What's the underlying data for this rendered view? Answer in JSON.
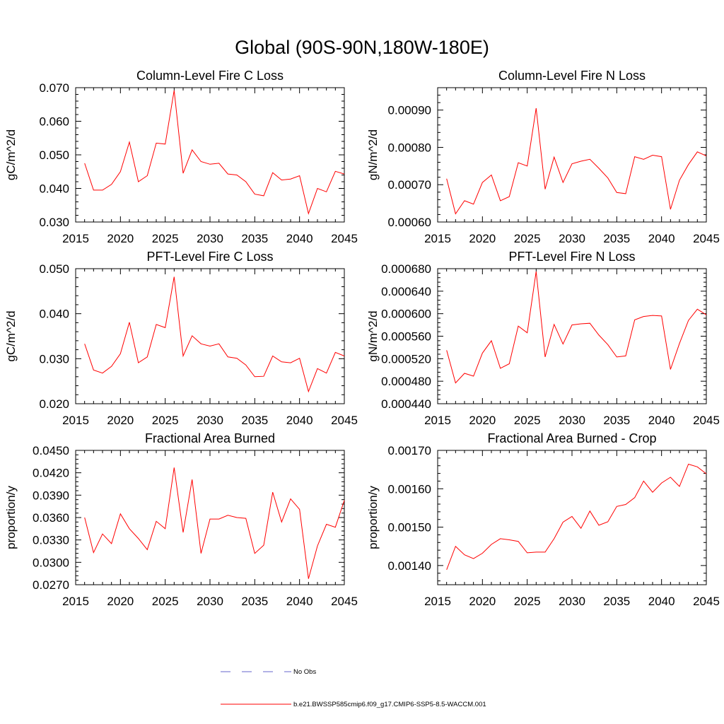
{
  "figure_title": "Global (90S-90N,180W-180E)",
  "colors": {
    "obs": "#6666cc",
    "model": "#ff0000",
    "axis": "#000000",
    "background": "#ffffff"
  },
  "legend": {
    "obs_label": "No Obs",
    "model_label": "b.e21.BWSSP585cmip6.f09_g17.CMIP6-SSP5-8.5-WACCM.001"
  },
  "chart_data": [
    {
      "type": "line",
      "title": "Column-Level Fire C Loss",
      "ylabel": "gC/m^2/d",
      "xlim": [
        2015,
        2045
      ],
      "ylim": [
        0.03,
        0.07
      ],
      "xticks": [
        "2015",
        "2020",
        "2025",
        "2030",
        "2035",
        "2040",
        "2045"
      ],
      "yticks": [
        "0.030",
        "0.040",
        "0.050",
        "0.060",
        "0.070"
      ],
      "x": [
        2016,
        2017,
        2018,
        2019,
        2020,
        2021,
        2022,
        2023,
        2024,
        2025,
        2026,
        2027,
        2028,
        2029,
        2030,
        2031,
        2032,
        2033,
        2034,
        2035,
        2036,
        2037,
        2038,
        2039,
        2040,
        2041,
        2042,
        2043,
        2044,
        2045
      ],
      "series": [
        {
          "name": "b.e21.BWSSP585cmip6.f09_g17.CMIP6-SSP5-8.5-WACCM.001",
          "values": [
            0.0475,
            0.0395,
            0.0395,
            0.0412,
            0.045,
            0.0538,
            0.042,
            0.0438,
            0.0535,
            0.0532,
            0.0692,
            0.0445,
            0.0515,
            0.048,
            0.0472,
            0.0475,
            0.0443,
            0.044,
            0.042,
            0.0383,
            0.0378,
            0.0447,
            0.0425,
            0.0428,
            0.0438,
            0.0325,
            0.04,
            0.039,
            0.0451,
            0.0443
          ]
        }
      ]
    },
    {
      "type": "line",
      "title": "Column-Level Fire N Loss",
      "ylabel": "gN/m^2/d",
      "xlim": [
        2015,
        2045
      ],
      "ylim": [
        0.0006,
        0.00096
      ],
      "xticks": [
        "2015",
        "2020",
        "2025",
        "2030",
        "2035",
        "2040",
        "2045"
      ],
      "yticks": [
        "0.00060",
        "0.00070",
        "0.00080",
        "0.00090"
      ],
      "x": [
        2016,
        2017,
        2018,
        2019,
        2020,
        2021,
        2022,
        2023,
        2024,
        2025,
        2026,
        2027,
        2028,
        2029,
        2030,
        2031,
        2032,
        2033,
        2034,
        2035,
        2036,
        2037,
        2038,
        2039,
        2040,
        2041,
        2042,
        2043,
        2044,
        2045
      ],
      "series": [
        {
          "name": "b.e21.BWSSP585cmip6.f09_g17.CMIP6-SSP5-8.5-WACCM.001",
          "values": [
            0.000716,
            0.000622,
            0.000657,
            0.000648,
            0.000706,
            0.000726,
            0.000657,
            0.000668,
            0.000759,
            0.00075,
            0.000905,
            0.000688,
            0.000774,
            0.000706,
            0.000756,
            0.000763,
            0.000768,
            0.000744,
            0.000718,
            0.000679,
            0.000676,
            0.000775,
            0.000768,
            0.000779,
            0.000775,
            0.000634,
            0.000712,
            0.000754,
            0.000788,
            0.000777
          ]
        }
      ]
    },
    {
      "type": "line",
      "title": "PFT-Level Fire C Loss",
      "ylabel": "gC/m^2/d",
      "xlim": [
        2015,
        2045
      ],
      "ylim": [
        0.02,
        0.05
      ],
      "xticks": [
        "2015",
        "2020",
        "2025",
        "2030",
        "2035",
        "2040",
        "2045"
      ],
      "yticks": [
        "0.020",
        "0.030",
        "0.040",
        "0.050"
      ],
      "x": [
        2016,
        2017,
        2018,
        2019,
        2020,
        2021,
        2022,
        2023,
        2024,
        2025,
        2026,
        2027,
        2028,
        2029,
        2030,
        2031,
        2032,
        2033,
        2034,
        2035,
        2036,
        2037,
        2038,
        2039,
        2040,
        2041,
        2042,
        2043,
        2044,
        2045
      ],
      "series": [
        {
          "name": "b.e21.BWSSP585cmip6.f09_g17.CMIP6-SSP5-8.5-WACCM.001",
          "values": [
            0.0333,
            0.0275,
            0.0268,
            0.0283,
            0.0311,
            0.0381,
            0.0291,
            0.0304,
            0.0376,
            0.0369,
            0.0482,
            0.0306,
            0.0351,
            0.0333,
            0.0328,
            0.0333,
            0.0304,
            0.0301,
            0.0286,
            0.026,
            0.0261,
            0.0306,
            0.0293,
            0.0291,
            0.0301,
            0.0227,
            0.0278,
            0.0268,
            0.0314,
            0.0306
          ]
        }
      ]
    },
    {
      "type": "line",
      "title": "PFT-Level Fire N Loss",
      "ylabel": "gN/m^2/d",
      "xlim": [
        2015,
        2045
      ],
      "ylim": [
        0.00044,
        0.00068
      ],
      "xticks": [
        "2015",
        "2020",
        "2025",
        "2030",
        "2035",
        "2040",
        "2045"
      ],
      "yticks": [
        "0.000440",
        "0.000480",
        "0.000520",
        "0.000560",
        "0.000600",
        "0.000640",
        "0.000680"
      ],
      "x": [
        2016,
        2017,
        2018,
        2019,
        2020,
        2021,
        2022,
        2023,
        2024,
        2025,
        2026,
        2027,
        2028,
        2029,
        2030,
        2031,
        2032,
        2033,
        2034,
        2035,
        2036,
        2037,
        2038,
        2039,
        2040,
        2041,
        2042,
        2043,
        2044,
        2045
      ],
      "series": [
        {
          "name": "b.e21.BWSSP585cmip6.f09_g17.CMIP6-SSP5-8.5-WACCM.001",
          "values": [
            0.000535,
            0.000477,
            0.000494,
            0.000489,
            0.00053,
            0.000552,
            0.000503,
            0.000511,
            0.000578,
            0.000566,
            0.000675,
            0.000523,
            0.000581,
            0.000546,
            0.00058,
            0.000582,
            0.000583,
            0.000562,
            0.000545,
            0.000523,
            0.000525,
            0.000589,
            0.000595,
            0.000597,
            0.000596,
            0.000501,
            0.000547,
            0.000588,
            0.000608,
            0.000598
          ]
        }
      ]
    },
    {
      "type": "line",
      "title": "Fractional Area Burned",
      "ylabel": "proportion/y",
      "xlim": [
        2015,
        2045
      ],
      "ylim": [
        0.027,
        0.045
      ],
      "xticks": [
        "2015",
        "2020",
        "2025",
        "2030",
        "2035",
        "2040",
        "2045"
      ],
      "yticks": [
        "0.0270",
        "0.0300",
        "0.0330",
        "0.0360",
        "0.0390",
        "0.0420",
        "0.0450"
      ],
      "x": [
        2016,
        2017,
        2018,
        2019,
        2020,
        2021,
        2022,
        2023,
        2024,
        2025,
        2026,
        2027,
        2028,
        2029,
        2030,
        2031,
        2032,
        2033,
        2034,
        2035,
        2036,
        2037,
        2038,
        2039,
        2040,
        2041,
        2042,
        2043,
        2044,
        2045
      ],
      "series": [
        {
          "name": "b.e21.BWSSP585cmip6.f09_g17.CMIP6-SSP5-8.5-WACCM.001",
          "values": [
            0.036,
            0.0313,
            0.0338,
            0.0325,
            0.0365,
            0.0345,
            0.0332,
            0.0317,
            0.0355,
            0.0345,
            0.0427,
            0.034,
            0.0411,
            0.0312,
            0.0358,
            0.0358,
            0.0363,
            0.036,
            0.0359,
            0.0312,
            0.0323,
            0.0394,
            0.0354,
            0.0385,
            0.0371,
            0.0278,
            0.0322,
            0.0351,
            0.0347,
            0.0383
          ]
        }
      ]
    },
    {
      "type": "line",
      "title": "Fractional Area Burned - Crop",
      "ylabel": "proportion/y",
      "xlim": [
        2015,
        2045
      ],
      "ylim": [
        0.00135,
        0.0017
      ],
      "xticks": [
        "2015",
        "2020",
        "2025",
        "2030",
        "2035",
        "2040",
        "2045"
      ],
      "yticks": [
        "0.00140",
        "0.00150",
        "0.00160",
        "0.00170"
      ],
      "x": [
        2016,
        2017,
        2018,
        2019,
        2020,
        2021,
        2022,
        2023,
        2024,
        2025,
        2026,
        2027,
        2028,
        2029,
        2030,
        2031,
        2032,
        2033,
        2034,
        2035,
        2036,
        2037,
        2038,
        2039,
        2040,
        2041,
        2042,
        2043,
        2044,
        2045
      ],
      "series": [
        {
          "name": "b.e21.BWSSP585cmip6.f09_g17.CMIP6-SSP5-8.5-WACCM.001",
          "values": [
            0.001389,
            0.00145,
            0.001428,
            0.001418,
            0.001432,
            0.001455,
            0.00147,
            0.001467,
            0.001463,
            0.001433,
            0.001435,
            0.001435,
            0.00147,
            0.001513,
            0.001528,
            0.001497,
            0.001542,
            0.001505,
            0.001514,
            0.001554,
            0.001559,
            0.001577,
            0.00162,
            0.001591,
            0.001615,
            0.00163,
            0.001606,
            0.001664,
            0.001657,
            0.001639
          ]
        }
      ]
    }
  ]
}
